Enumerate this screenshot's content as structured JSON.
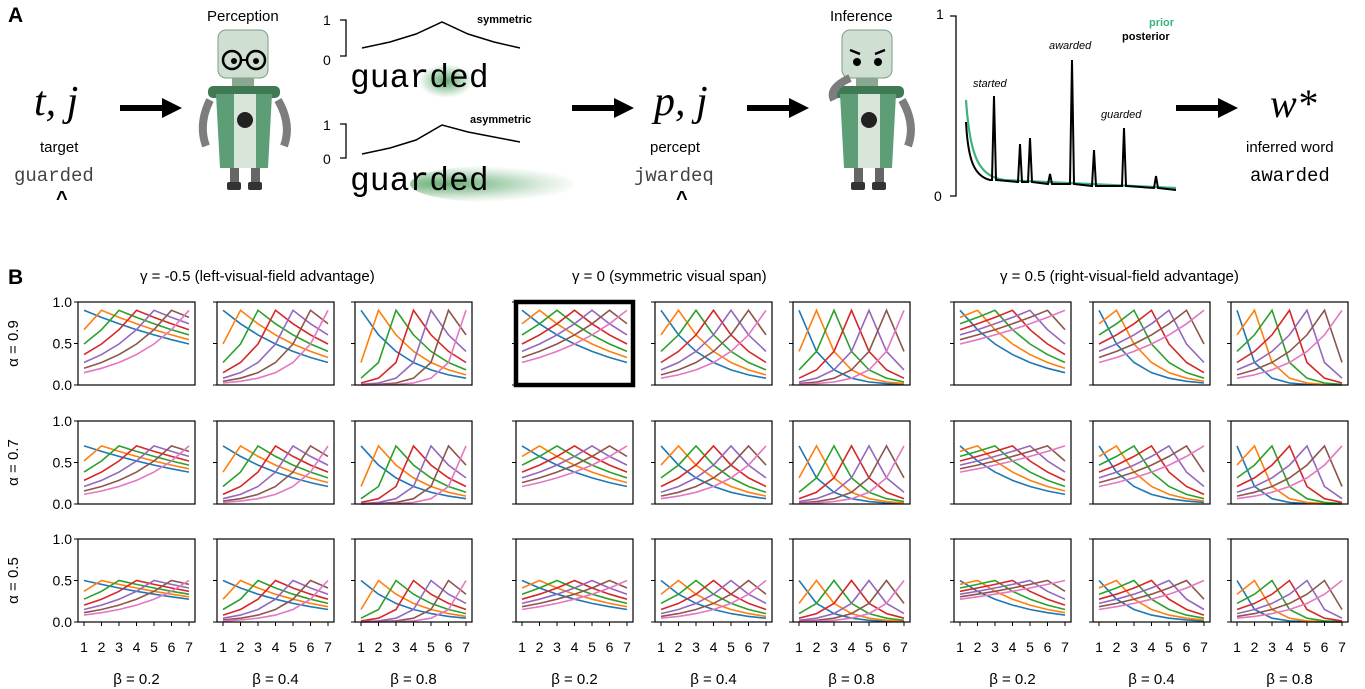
{
  "panel_a": {
    "label": "A",
    "target_symbol": "t, j",
    "target_label": "target",
    "target_word": "guarded",
    "fixation_mark": "^",
    "perception_title": "Perception",
    "symmetric_label": "symmetric",
    "asymmetric_label": "asymmetric",
    "axis_one": "1",
    "axis_zero": "0",
    "stimulus_word": "guarded",
    "percept_symbol": "p, j",
    "percept_label": "percept",
    "percept_word": "jwardeq",
    "inference_title": "Inference",
    "prior_label": "prior",
    "posterior_label": "posterior",
    "word_started": "started",
    "word_awarded": "awarded",
    "word_guarded": "guarded",
    "inferred_symbol": "w*",
    "inferred_label": "inferred word",
    "inferred_word": "awarded",
    "colors": {
      "prior": "#3bb37a",
      "posterior": "#000000",
      "robot": "#5e9e77"
    }
  },
  "panel_b": {
    "label": "B",
    "group_titles": [
      "γ = -0.5 (left-visual-field advantage)",
      "γ = 0 (symmetric visual span)",
      "γ = 0.5 (right-visual-field advantage)"
    ],
    "row_labels": [
      "α = 0.9",
      "α = 0.7",
      "α = 0.5"
    ],
    "col_labels": [
      "β = 0.2",
      "β = 0.4",
      "β = 0.8"
    ],
    "y_ticks": [
      "1.0",
      "0.5",
      "0.0"
    ],
    "x_ticks": [
      "1",
      "2",
      "3",
      "4",
      "5",
      "6",
      "7"
    ],
    "highlighted_cell": "row 1, middle group, β = 0.2",
    "chart_data": {
      "type": "line",
      "alpha": [
        0.9,
        0.7,
        0.5
      ],
      "beta": [
        0.2,
        0.4,
        0.8
      ],
      "gamma": [
        -0.5,
        0,
        0.5
      ],
      "x": [
        1,
        2,
        3,
        4,
        5,
        6,
        7
      ],
      "ylim": [
        0,
        1
      ],
      "series_colors": [
        "#1f77b4",
        "#ff7f0e",
        "#2ca02c",
        "#d62728",
        "#9467bd",
        "#8c564b",
        "#e377c2"
      ]
    }
  }
}
